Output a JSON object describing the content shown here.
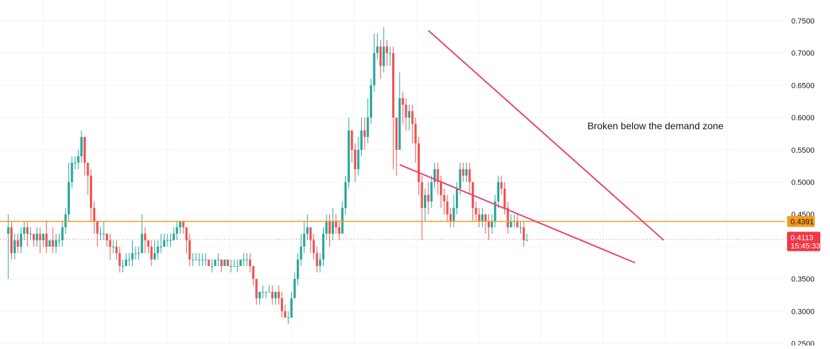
{
  "chart_data": {
    "type": "candlestick",
    "ylim": [
      0.25,
      0.77
    ],
    "y_ticks": [
      "0.7500",
      "0.7000",
      "0.6500",
      "0.6000",
      "0.5500",
      "0.5000",
      "0.4500",
      "0.3500",
      "0.3000",
      "0.2500"
    ],
    "grid": true,
    "support_line": {
      "value": 0.4391,
      "label": "0.4391",
      "color": "#f59a1c"
    },
    "current_price": {
      "value": 0.4113,
      "label": "0.4113",
      "countdown": "15:45:33",
      "color": "#f23645"
    },
    "trendlines": [
      {
        "name": "upper",
        "color": "#e8437a",
        "from": {
          "bar": 132,
          "price": 0.735
        },
        "to": {
          "bar": 206,
          "price": 0.41
        }
      },
      {
        "name": "lower",
        "color": "#e8437a",
        "from": {
          "bar": 123,
          "price": 0.527
        },
        "to": {
          "bar": 197,
          "price": 0.375
        }
      }
    ],
    "annotation": {
      "text": "Broken below the demand zone",
      "bar": 182,
      "price": 0.582
    },
    "colors": {
      "up": "#26a69a",
      "down": "#ef5350"
    },
    "candles": [
      [
        0.42,
        0.43,
        0.45,
        0.35
      ],
      [
        0.43,
        0.39,
        0.44,
        0.38
      ],
      [
        0.39,
        0.41,
        0.42,
        0.38
      ],
      [
        0.41,
        0.4,
        0.42,
        0.39
      ],
      [
        0.4,
        0.42,
        0.43,
        0.39
      ],
      [
        0.42,
        0.43,
        0.44,
        0.41
      ],
      [
        0.43,
        0.42,
        0.44,
        0.4
      ],
      [
        0.42,
        0.42,
        0.43,
        0.41
      ],
      [
        0.42,
        0.41,
        0.42,
        0.4
      ],
      [
        0.41,
        0.42,
        0.43,
        0.4
      ],
      [
        0.42,
        0.41,
        0.43,
        0.39
      ],
      [
        0.41,
        0.42,
        0.42,
        0.4
      ],
      [
        0.42,
        0.4,
        0.44,
        0.39
      ],
      [
        0.4,
        0.41,
        0.41,
        0.4
      ],
      [
        0.41,
        0.4,
        0.43,
        0.39
      ],
      [
        0.4,
        0.41,
        0.42,
        0.39
      ],
      [
        0.41,
        0.41,
        0.42,
        0.4
      ],
      [
        0.41,
        0.43,
        0.44,
        0.4
      ],
      [
        0.43,
        0.45,
        0.46,
        0.42
      ],
      [
        0.45,
        0.5,
        0.53,
        0.44
      ],
      [
        0.5,
        0.53,
        0.54,
        0.49
      ],
      [
        0.53,
        0.53,
        0.54,
        0.52
      ],
      [
        0.53,
        0.54,
        0.55,
        0.52
      ],
      [
        0.54,
        0.57,
        0.58,
        0.53
      ],
      [
        0.57,
        0.53,
        0.57,
        0.51
      ],
      [
        0.53,
        0.51,
        0.53,
        0.48
      ],
      [
        0.51,
        0.46,
        0.52,
        0.44
      ],
      [
        0.46,
        0.44,
        0.47,
        0.42
      ],
      [
        0.44,
        0.42,
        0.44,
        0.4
      ],
      [
        0.42,
        0.42,
        0.43,
        0.41
      ],
      [
        0.42,
        0.42,
        0.44,
        0.41
      ],
      [
        0.42,
        0.41,
        0.42,
        0.4
      ],
      [
        0.41,
        0.4,
        0.42,
        0.38
      ],
      [
        0.4,
        0.4,
        0.41,
        0.39
      ],
      [
        0.4,
        0.39,
        0.41,
        0.38
      ],
      [
        0.39,
        0.37,
        0.4,
        0.36
      ],
      [
        0.37,
        0.37,
        0.38,
        0.36
      ],
      [
        0.37,
        0.38,
        0.39,
        0.37
      ],
      [
        0.38,
        0.38,
        0.39,
        0.37
      ],
      [
        0.38,
        0.39,
        0.41,
        0.37
      ],
      [
        0.39,
        0.39,
        0.4,
        0.38
      ],
      [
        0.39,
        0.39,
        0.4,
        0.38
      ],
      [
        0.39,
        0.42,
        0.45,
        0.39
      ],
      [
        0.42,
        0.41,
        0.43,
        0.39
      ],
      [
        0.41,
        0.4,
        0.41,
        0.39
      ],
      [
        0.4,
        0.38,
        0.41,
        0.37
      ],
      [
        0.38,
        0.39,
        0.41,
        0.38
      ],
      [
        0.39,
        0.4,
        0.41,
        0.38
      ],
      [
        0.4,
        0.4,
        0.42,
        0.39
      ],
      [
        0.4,
        0.41,
        0.42,
        0.4
      ],
      [
        0.41,
        0.41,
        0.42,
        0.4
      ],
      [
        0.41,
        0.41,
        0.42,
        0.4
      ],
      [
        0.41,
        0.42,
        0.43,
        0.41
      ],
      [
        0.42,
        0.43,
        0.44,
        0.41
      ],
      [
        0.43,
        0.44,
        0.44,
        0.42
      ],
      [
        0.44,
        0.43,
        0.44,
        0.42
      ],
      [
        0.43,
        0.41,
        0.43,
        0.39
      ],
      [
        0.41,
        0.38,
        0.42,
        0.37
      ],
      [
        0.38,
        0.38,
        0.39,
        0.37
      ],
      [
        0.38,
        0.38,
        0.39,
        0.38
      ],
      [
        0.38,
        0.38,
        0.39,
        0.37
      ],
      [
        0.38,
        0.38,
        0.39,
        0.37
      ],
      [
        0.38,
        0.38,
        0.39,
        0.37
      ],
      [
        0.38,
        0.37,
        0.38,
        0.37
      ],
      [
        0.37,
        0.37,
        0.38,
        0.36
      ],
      [
        0.37,
        0.38,
        0.38,
        0.37
      ],
      [
        0.38,
        0.38,
        0.39,
        0.37
      ],
      [
        0.38,
        0.37,
        0.38,
        0.36
      ],
      [
        0.37,
        0.38,
        0.38,
        0.37
      ],
      [
        0.38,
        0.37,
        0.38,
        0.37
      ],
      [
        0.37,
        0.37,
        0.38,
        0.36
      ],
      [
        0.37,
        0.37,
        0.38,
        0.37
      ],
      [
        0.37,
        0.37,
        0.38,
        0.36
      ],
      [
        0.37,
        0.38,
        0.38,
        0.37
      ],
      [
        0.38,
        0.38,
        0.39,
        0.37
      ],
      [
        0.38,
        0.38,
        0.39,
        0.37
      ],
      [
        0.38,
        0.37,
        0.39,
        0.36
      ],
      [
        0.37,
        0.35,
        0.37,
        0.34
      ],
      [
        0.35,
        0.32,
        0.35,
        0.31
      ],
      [
        0.32,
        0.33,
        0.33,
        0.31
      ],
      [
        0.33,
        0.33,
        0.34,
        0.32
      ],
      [
        0.33,
        0.33,
        0.33,
        0.32
      ],
      [
        0.33,
        0.33,
        0.34,
        0.33
      ],
      [
        0.33,
        0.32,
        0.34,
        0.31
      ],
      [
        0.32,
        0.33,
        0.33,
        0.31
      ],
      [
        0.33,
        0.32,
        0.34,
        0.31
      ],
      [
        0.32,
        0.3,
        0.33,
        0.29
      ],
      [
        0.3,
        0.29,
        0.31,
        0.29
      ],
      [
        0.29,
        0.29,
        0.3,
        0.28
      ],
      [
        0.29,
        0.32,
        0.33,
        0.29
      ],
      [
        0.32,
        0.35,
        0.36,
        0.32
      ],
      [
        0.35,
        0.38,
        0.39,
        0.34
      ],
      [
        0.38,
        0.4,
        0.42,
        0.37
      ],
      [
        0.4,
        0.42,
        0.44,
        0.39
      ],
      [
        0.42,
        0.43,
        0.45,
        0.41
      ],
      [
        0.43,
        0.41,
        0.43,
        0.39
      ],
      [
        0.41,
        0.39,
        0.42,
        0.38
      ],
      [
        0.39,
        0.37,
        0.4,
        0.36
      ],
      [
        0.37,
        0.38,
        0.39,
        0.36
      ],
      [
        0.38,
        0.42,
        0.43,
        0.37
      ],
      [
        0.42,
        0.44,
        0.45,
        0.41
      ],
      [
        0.44,
        0.42,
        0.45,
        0.4
      ],
      [
        0.42,
        0.44,
        0.46,
        0.41
      ],
      [
        0.44,
        0.43,
        0.45,
        0.42
      ],
      [
        0.43,
        0.42,
        0.44,
        0.41
      ],
      [
        0.42,
        0.46,
        0.47,
        0.42
      ],
      [
        0.46,
        0.5,
        0.51,
        0.45
      ],
      [
        0.5,
        0.58,
        0.6,
        0.49
      ],
      [
        0.58,
        0.55,
        0.58,
        0.53
      ],
      [
        0.55,
        0.52,
        0.56,
        0.5
      ],
      [
        0.52,
        0.55,
        0.57,
        0.51
      ],
      [
        0.55,
        0.58,
        0.6,
        0.54
      ],
      [
        0.58,
        0.57,
        0.6,
        0.55
      ],
      [
        0.57,
        0.6,
        0.63,
        0.56
      ],
      [
        0.6,
        0.65,
        0.66,
        0.59
      ],
      [
        0.65,
        0.7,
        0.73,
        0.64
      ],
      [
        0.7,
        0.71,
        0.73,
        0.69
      ],
      [
        0.71,
        0.68,
        0.72,
        0.66
      ],
      [
        0.68,
        0.71,
        0.74,
        0.67
      ],
      [
        0.71,
        0.7,
        0.72,
        0.68
      ],
      [
        0.7,
        0.7,
        0.71,
        0.68
      ],
      [
        0.7,
        0.6,
        0.71,
        0.52
      ],
      [
        0.6,
        0.55,
        0.6,
        0.51
      ],
      [
        0.55,
        0.63,
        0.67,
        0.55
      ],
      [
        0.63,
        0.62,
        0.64,
        0.59
      ],
      [
        0.62,
        0.6,
        0.63,
        0.58
      ],
      [
        0.6,
        0.61,
        0.62,
        0.58
      ],
      [
        0.61,
        0.59,
        0.62,
        0.56
      ],
      [
        0.59,
        0.56,
        0.6,
        0.53
      ],
      [
        0.56,
        0.5,
        0.57,
        0.48
      ],
      [
        0.5,
        0.46,
        0.51,
        0.41
      ],
      [
        0.46,
        0.48,
        0.49,
        0.44
      ],
      [
        0.48,
        0.47,
        0.5,
        0.45
      ],
      [
        0.47,
        0.5,
        0.51,
        0.46
      ],
      [
        0.5,
        0.52,
        0.53,
        0.49
      ],
      [
        0.52,
        0.5,
        0.53,
        0.48
      ],
      [
        0.5,
        0.48,
        0.51,
        0.46
      ],
      [
        0.48,
        0.47,
        0.49,
        0.45
      ],
      [
        0.47,
        0.45,
        0.48,
        0.44
      ],
      [
        0.45,
        0.44,
        0.46,
        0.43
      ],
      [
        0.44,
        0.46,
        0.48,
        0.43
      ],
      [
        0.46,
        0.49,
        0.5,
        0.45
      ],
      [
        0.49,
        0.52,
        0.53,
        0.48
      ],
      [
        0.52,
        0.51,
        0.53,
        0.5
      ],
      [
        0.51,
        0.52,
        0.53,
        0.5
      ],
      [
        0.52,
        0.5,
        0.53,
        0.48
      ],
      [
        0.5,
        0.46,
        0.5,
        0.44
      ],
      [
        0.46,
        0.45,
        0.47,
        0.44
      ],
      [
        0.45,
        0.44,
        0.46,
        0.43
      ],
      [
        0.44,
        0.45,
        0.46,
        0.43
      ],
      [
        0.45,
        0.44,
        0.45,
        0.42
      ],
      [
        0.44,
        0.43,
        0.45,
        0.41
      ],
      [
        0.43,
        0.44,
        0.45,
        0.42
      ],
      [
        0.44,
        0.47,
        0.48,
        0.43
      ],
      [
        0.47,
        0.5,
        0.51,
        0.46
      ],
      [
        0.5,
        0.49,
        0.51,
        0.48
      ],
      [
        0.49,
        0.46,
        0.5,
        0.45
      ],
      [
        0.46,
        0.43,
        0.47,
        0.42
      ],
      [
        0.43,
        0.44,
        0.45,
        0.43
      ],
      [
        0.44,
        0.44,
        0.45,
        0.43
      ],
      [
        0.44,
        0.43,
        0.45,
        0.43
      ],
      [
        0.43,
        0.43,
        0.44,
        0.42
      ],
      [
        0.43,
        0.41,
        0.44,
        0.4
      ],
      [
        0.41,
        0.41,
        0.42,
        0.41
      ]
    ]
  }
}
